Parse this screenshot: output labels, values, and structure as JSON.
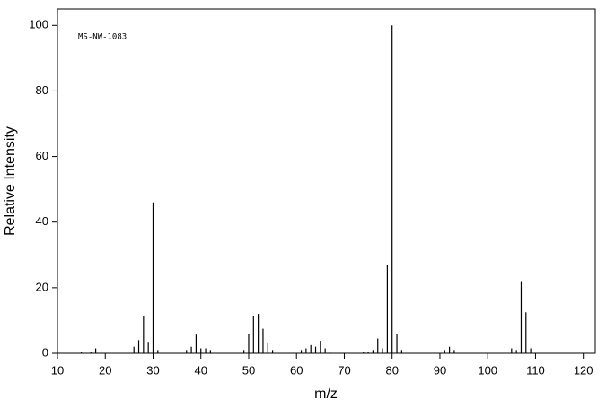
{
  "chart_data": {
    "type": "stem",
    "annotation": "MS-NW-1083",
    "x_label": "m/z",
    "y_label": "Relative Intensity",
    "x": [
      15,
      17,
      18,
      26,
      27,
      28,
      29,
      30,
      31,
      37,
      38,
      39,
      40,
      41,
      42,
      49,
      50,
      51,
      52,
      53,
      54,
      55,
      61,
      62,
      63,
      64,
      65,
      66,
      67,
      74,
      75,
      76,
      77,
      78,
      79,
      80,
      81,
      82,
      91,
      92,
      93,
      105,
      106,
      107,
      108,
      109
    ],
    "values": [
      0.5,
      0.5,
      1.5,
      2,
      4,
      11.5,
      3.5,
      46,
      1,
      1,
      2,
      5.7,
      1.5,
      1.5,
      1,
      1,
      6,
      11.5,
      12,
      7.5,
      3,
      1,
      1,
      1.5,
      2.5,
      2,
      3.8,
      1.5,
      0.5,
      0.5,
      0.5,
      1,
      4.5,
      1.5,
      27,
      100,
      6,
      1,
      1,
      2,
      1,
      1.5,
      1,
      22,
      12.5,
      1.5
    ],
    "color": "#000000",
    "xlim": [
      10,
      122.5
    ],
    "xticks": [
      10,
      20,
      30,
      40,
      50,
      60,
      70,
      80,
      90,
      100,
      110,
      120
    ],
    "ylim": [
      0,
      105
    ],
    "yticks": [
      0,
      20,
      40,
      60,
      80,
      100
    ]
  }
}
